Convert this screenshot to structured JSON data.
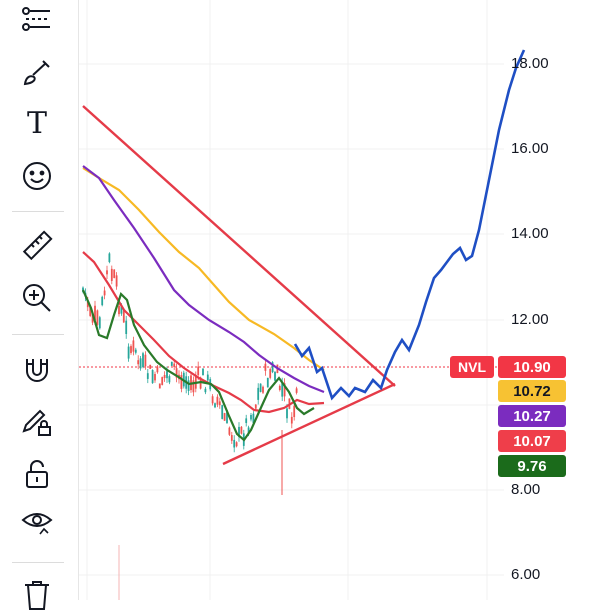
{
  "toolbar": {
    "tools": [
      {
        "name": "trend-tools",
        "icon": "trend-line-icon"
      },
      {
        "name": "brush",
        "icon": "brush-icon"
      },
      {
        "name": "text",
        "icon": "text-icon",
        "glyph": "T"
      },
      {
        "name": "emoji",
        "icon": "smiley-icon"
      },
      {
        "name": "measure",
        "icon": "ruler-icon"
      },
      {
        "name": "zoom",
        "icon": "zoom-in-icon"
      },
      {
        "name": "magnet",
        "icon": "magnet-icon"
      },
      {
        "name": "lock-drawings",
        "icon": "pencil-lock-icon"
      },
      {
        "name": "unlock",
        "icon": "unlock-icon"
      },
      {
        "name": "visibility",
        "icon": "eye-icon"
      },
      {
        "name": "delete",
        "icon": "trash-icon"
      }
    ]
  },
  "price_axis": {
    "labels": [
      "18.00",
      "16.00",
      "14.00",
      "12.00",
      "8.00",
      "6.00"
    ]
  },
  "symbol": "NVL",
  "badges": [
    {
      "value": "10.90",
      "color": "#f23645",
      "text_color": "#ffffff"
    },
    {
      "value": "10.72",
      "color": "#f7c233",
      "text_color": "#131722"
    },
    {
      "value": "10.27",
      "color": "#7b2cbf",
      "text_color": "#ffffff"
    },
    {
      "value": "10.07",
      "color": "#ef3e4a",
      "text_color": "#ffffff"
    },
    {
      "value": "9.76",
      "color": "#1b6b1b",
      "text_color": "#ffffff"
    }
  ],
  "colors": {
    "triangle": "#e53b48",
    "projection": "#1f4fc4",
    "ma_yellow": "#f7b924",
    "ma_purple": "#7b2cbf",
    "ma_red": "#e53b48",
    "ma_green": "#2a7a2a",
    "candle_up": "#26a69a",
    "candle_down": "#ef5350"
  }
}
